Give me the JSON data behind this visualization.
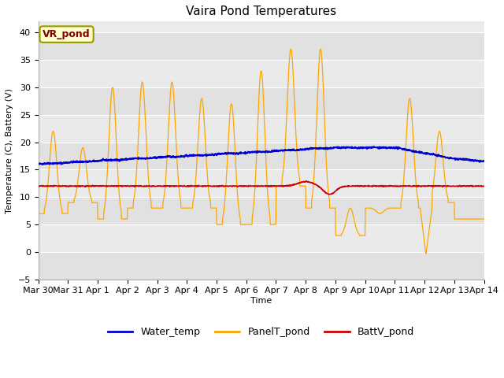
{
  "title": "Vaira Pond Temperatures",
  "ylabel": "Temperature (C), Battery (V)",
  "xlabel": "Time",
  "annotation": "VR_pond",
  "legend_labels": [
    "Water_temp",
    "PanelT_pond",
    "BattV_pond"
  ],
  "x_tick_labels": [
    "Mar 30",
    "Mar 31",
    "Apr 1",
    "Apr 2",
    "Apr 3",
    "Apr 4",
    "Apr 5",
    "Apr 6",
    "Apr 7",
    "Apr 8",
    "Apr 9",
    "Apr 10",
    "Apr 11",
    "Apr 12",
    "Apr 13",
    "Apr 14"
  ],
  "ylim": [
    -5,
    42
  ],
  "yticks": [
    -5,
    0,
    5,
    10,
    15,
    20,
    25,
    30,
    35,
    40
  ],
  "water_color": "#0000cc",
  "panel_color": "#ffa500",
  "batt_color": "#cc0000",
  "bg_color": "#ebebeb",
  "grid_color": "#ffffff",
  "title_fontsize": 11,
  "label_fontsize": 8,
  "tick_fontsize": 8,
  "legend_fontsize": 9
}
